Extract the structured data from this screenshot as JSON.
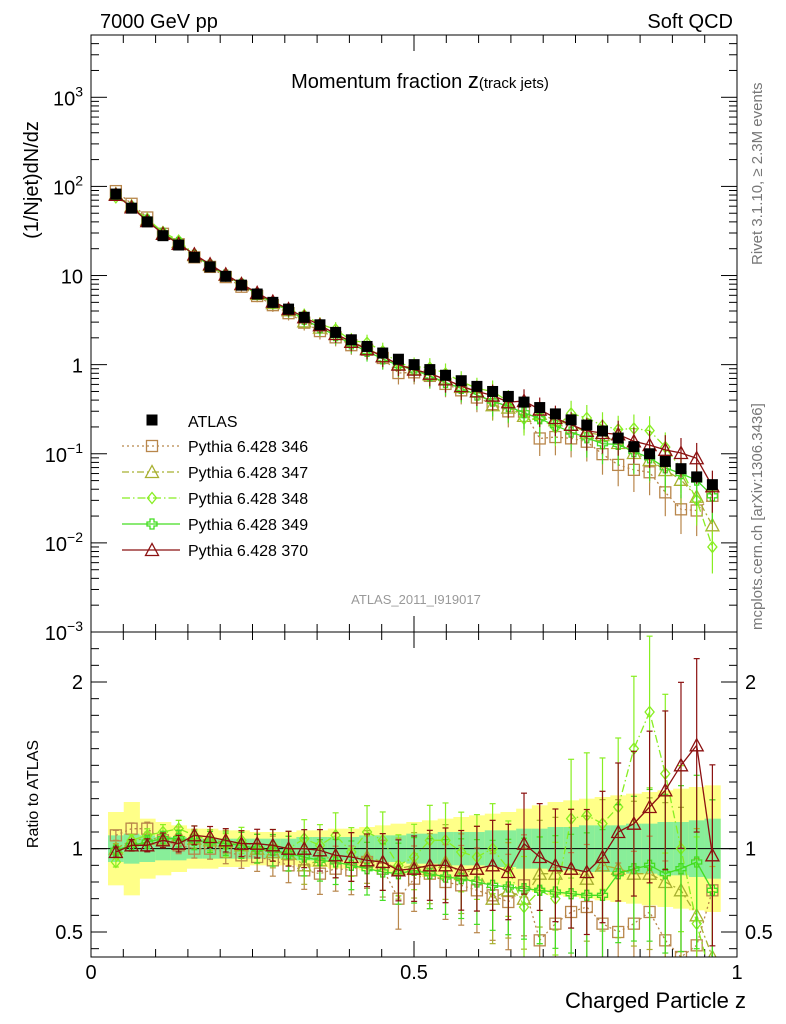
{
  "header": {
    "left": "7000 GeV pp",
    "right": "Soft QCD"
  },
  "side_labels": {
    "top": "Rivet 3.1.10, ≥ 2.3M events",
    "bottom": "mcplots.cern.ch [arXiv:1306.3436]"
  },
  "colors": {
    "atlas": "#000000",
    "p346": "#b8864b",
    "p347": "#a8b030",
    "p348": "#88ee22",
    "p349": "#44dd22",
    "p370": "#8b1010",
    "band_outer": "#ffff88",
    "band_inner": "#88ee99"
  },
  "chart_data": [
    {
      "type": "line",
      "title": "Momentum fraction z(track jets)",
      "title_main": "Momentum fraction ",
      "title_var": "z",
      "title_sub": "(track jets)",
      "xlabel": "",
      "ylabel": "(1/Njet)dN/dz",
      "xlim": [
        0,
        1
      ],
      "ylim": [
        0.001,
        5000
      ],
      "yscale": "log",
      "annotation": "ATLAS_2011_I919017",
      "yticks": [
        {
          "v": 1000,
          "label_base": "10",
          "label_exp": "3"
        },
        {
          "v": 100,
          "label_base": "10",
          "label_exp": "2"
        },
        {
          "v": 10,
          "label_base": "10",
          "label_exp": ""
        },
        {
          "v": 1,
          "label_base": "1",
          "label_exp": ""
        },
        {
          "v": 0.1,
          "label_base": "10",
          "label_exp": "−1"
        },
        {
          "v": 0.01,
          "label_base": "10",
          "label_exp": "−2"
        },
        {
          "v": 0.001,
          "label_base": "10",
          "label_exp": "−3"
        }
      ],
      "legend_position": "bottom-left",
      "x": [
        0.0385,
        0.0628,
        0.0871,
        0.1114,
        0.1357,
        0.16,
        0.1843,
        0.2086,
        0.2329,
        0.2572,
        0.2815,
        0.3058,
        0.3301,
        0.3544,
        0.3787,
        0.403,
        0.4273,
        0.4516,
        0.4759,
        0.5002,
        0.5245,
        0.5488,
        0.5731,
        0.5974,
        0.6217,
        0.646,
        0.6703,
        0.6946,
        0.7189,
        0.7432,
        0.7675,
        0.7918,
        0.8161,
        0.8404,
        0.8647,
        0.889,
        0.9133,
        0.9376,
        0.9619
      ],
      "atlas": [
        82,
        57,
        40,
        28,
        22,
        16,
        12.5,
        9.8,
        7.8,
        6.2,
        5,
        4.2,
        3.4,
        2.8,
        2.3,
        1.9,
        1.6,
        1.35,
        1.15,
        1.0,
        0.88,
        0.76,
        0.66,
        0.57,
        0.5,
        0.44,
        0.38,
        0.33,
        0.28,
        0.24,
        0.21,
        0.18,
        0.15,
        0.12,
        0.1,
        0.082,
        0.068,
        0.055,
        0.045
      ],
      "series": [
        {
          "name": "Pythia 6.428 346",
          "key": "p346",
          "marker": "square-open",
          "dash": "2,3",
          "ratio": [
            1.08,
            1.12,
            1.12,
            1.05,
            1.02,
            1.0,
            1.0,
            0.98,
            0.96,
            0.95,
            0.93,
            0.9,
            0.87,
            0.85,
            0.88,
            0.87,
            0.92,
            0.88,
            0.7,
            0.82,
            0.85,
            0.8,
            0.78,
            0.75,
            0.72,
            0.68,
            0.78,
            0.45,
            0.55,
            0.62,
            0.65,
            0.55,
            0.5,
            0.55,
            0.62,
            0.45,
            0.35,
            0.42,
            0.75
          ]
        },
        {
          "name": "Pythia 6.428 347",
          "key": "p347",
          "marker": "triangle-open",
          "dash": "7,3,2,3",
          "ratio": [
            1.0,
            1.05,
            1.06,
            1.06,
            1.08,
            1.06,
            1.05,
            1.04,
            1.02,
            1.0,
            0.98,
            0.97,
            0.9,
            0.93,
            0.96,
            0.95,
            0.95,
            0.92,
            0.88,
            0.9,
            0.88,
            0.92,
            0.85,
            0.88,
            0.7,
            0.75,
            0.7,
            0.85,
            0.85,
            0.88,
            0.82,
            0.9,
            0.88,
            0.85,
            0.85,
            0.8,
            0.75,
            0.6,
            0.35
          ]
        },
        {
          "name": "Pythia 6.428 348",
          "key": "p348",
          "marker": "diamond-open",
          "dash": "8,3,1.5,3",
          "ratio": [
            0.92,
            1.05,
            1.08,
            1.1,
            1.12,
            1.08,
            1.05,
            1.02,
            1.05,
            1.0,
            1.02,
            1.0,
            1.06,
            1.02,
            1.08,
            0.98,
            1.1,
            1.05,
            0.9,
            0.95,
            1.05,
            1.05,
            0.98,
            0.95,
            1.0,
            0.88,
            0.65,
            0.75,
            0.7,
            1.18,
            1.2,
            1.15,
            1.25,
            1.6,
            1.82,
            1.45,
            1.0,
            0.55,
            0.2
          ]
        },
        {
          "name": "Pythia 6.428 349",
          "key": "p349",
          "marker": "cross-open",
          "dash": "",
          "ratio": [
            0.99,
            1.02,
            1.04,
            1.06,
            1.06,
            1.05,
            1.04,
            1.03,
            1.02,
            1.0,
            0.99,
            0.97,
            0.95,
            0.93,
            0.92,
            0.9,
            0.88,
            0.86,
            0.85,
            0.87,
            0.85,
            0.83,
            0.82,
            0.8,
            0.78,
            0.77,
            0.76,
            0.75,
            0.74,
            0.73,
            0.72,
            0.72,
            0.85,
            0.88,
            0.9,
            0.85,
            0.88,
            0.92,
            0.75
          ]
        },
        {
          "name": "Pythia 6.428 370",
          "key": "p370",
          "marker": "triangle-open",
          "dash": "",
          "ratio": [
            0.98,
            1.02,
            1.02,
            1.05,
            1.03,
            1.08,
            1.07,
            1.05,
            1.03,
            1.03,
            1.02,
            1.0,
            1.0,
            0.99,
            0.96,
            0.95,
            0.93,
            0.92,
            0.87,
            0.88,
            0.9,
            0.9,
            0.87,
            0.88,
            0.9,
            0.86,
            1.03,
            0.95,
            0.9,
            0.88,
            0.86,
            0.95,
            1.1,
            1.15,
            1.25,
            1.35,
            1.5,
            1.62,
            0.96
          ]
        }
      ]
    },
    {
      "type": "line",
      "title": "",
      "xlabel": "Charged Particle z",
      "ylabel": "Ratio to ATLAS",
      "xlim": [
        0,
        1
      ],
      "ylim": [
        0.35,
        2.3
      ],
      "xticks": [
        {
          "v": 0,
          "label": "0"
        },
        {
          "v": 0.5,
          "label": "0.5"
        },
        {
          "v": 1,
          "label": "1"
        }
      ],
      "yticks": [
        {
          "v": 0.5,
          "label": "0.5"
        },
        {
          "v": 1,
          "label": "1"
        },
        {
          "v": 2,
          "label": "2"
        }
      ],
      "band_inner": [
        0.08,
        0.09,
        0.08,
        0.07,
        0.07,
        0.06,
        0.06,
        0.06,
        0.06,
        0.06,
        0.06,
        0.06,
        0.07,
        0.07,
        0.07,
        0.07,
        0.08,
        0.08,
        0.08,
        0.09,
        0.09,
        0.1,
        0.1,
        0.1,
        0.11,
        0.11,
        0.12,
        0.12,
        0.13,
        0.13,
        0.14,
        0.14,
        0.14,
        0.15,
        0.15,
        0.16,
        0.16,
        0.17,
        0.18
      ],
      "band_outer": [
        0.22,
        0.28,
        0.18,
        0.16,
        0.14,
        0.12,
        0.12,
        0.11,
        0.11,
        0.1,
        0.1,
        0.1,
        0.11,
        0.11,
        0.12,
        0.12,
        0.13,
        0.14,
        0.15,
        0.16,
        0.17,
        0.18,
        0.19,
        0.2,
        0.21,
        0.22,
        0.24,
        0.26,
        0.28,
        0.29,
        0.3,
        0.31,
        0.32,
        0.33,
        0.34,
        0.35,
        0.36,
        0.37,
        0.38
      ]
    }
  ]
}
